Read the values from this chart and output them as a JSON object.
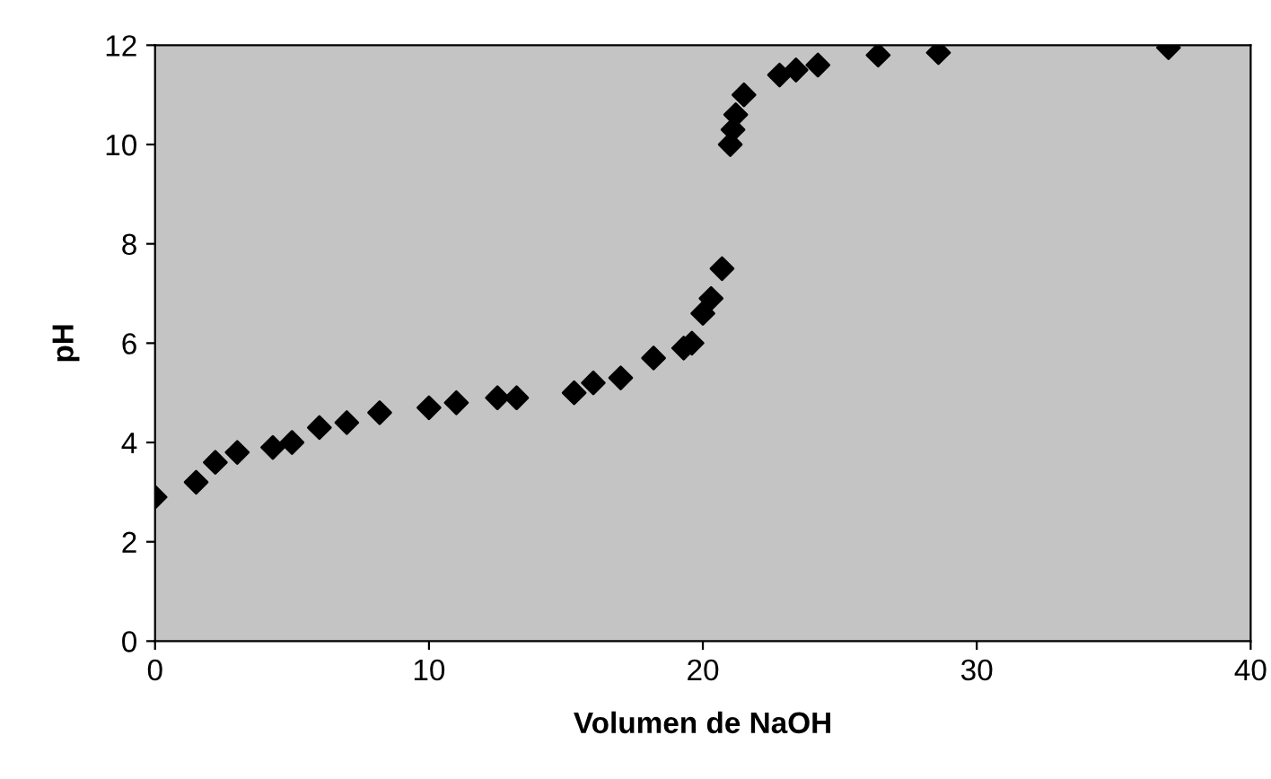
{
  "chart_data": {
    "type": "scatter",
    "xlabel": "Volumen de NaOH",
    "ylabel": "pH",
    "x": [
      0,
      1.5,
      2.2,
      3,
      4.3,
      5,
      6,
      7,
      8.2,
      10,
      11,
      12.5,
      13.2,
      15.3,
      16,
      17,
      18.2,
      19.3,
      19.6,
      20,
      20.3,
      20.7,
      21,
      21.1,
      21.2,
      21.5,
      22.8,
      23.4,
      24.2,
      26.4,
      28.6,
      37
    ],
    "series": [
      {
        "color": "#000000",
        "values": [
          2.9,
          3.2,
          3.6,
          3.8,
          3.9,
          4.0,
          4.3,
          4.4,
          4.6,
          4.7,
          4.8,
          4.9,
          4.9,
          5.0,
          5.2,
          5.3,
          5.7,
          5.9,
          6.0,
          6.6,
          6.9,
          7.5,
          10.0,
          10.3,
          10.6,
          11.0,
          11.4,
          11.5,
          11.6,
          11.8,
          11.85,
          11.95
        ]
      }
    ],
    "marker": "diamond",
    "xlim": [
      0,
      40
    ],
    "xticks": [
      0,
      10,
      20,
      30,
      40
    ],
    "ylim": [
      0,
      12
    ],
    "yticks": [
      0,
      2,
      4,
      6,
      8,
      10,
      12
    ],
    "grid": false,
    "legend": false
  }
}
